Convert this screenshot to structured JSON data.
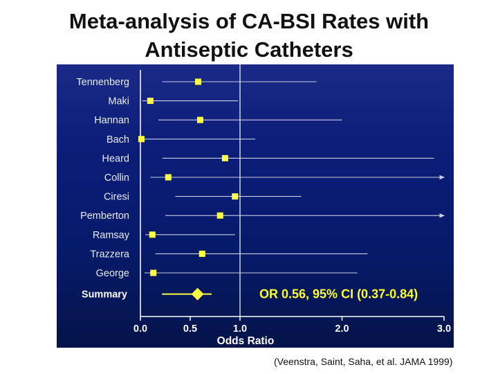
{
  "title_line1": "Meta-analysis of CA-BSI Rates with",
  "title_line2": "Antiseptic Catheters",
  "citation": "(Veenstra, Saint, Saha, et al. JAMA 1999)",
  "colors": {
    "panel_background": "#0b1d78",
    "study_label": "#e8ecf4",
    "marker": "#ffff44",
    "ci_line": "#c8d0e4",
    "axis": "#ffffff",
    "summary_text": "#ffff33"
  },
  "chart_data": {
    "type": "forest",
    "xlabel": "Odds Ratio",
    "xlim": [
      0.0,
      3.0
    ],
    "xticks": [
      "0.0",
      "0.5",
      "1.0",
      "2.0",
      "3.0"
    ],
    "reference_line": 1.0,
    "studies": [
      {
        "name": "Tennenberg",
        "or": 0.58,
        "lower": 0.22,
        "upper": 1.75,
        "arrow": false
      },
      {
        "name": "Maki",
        "or": 0.1,
        "lower": 0.02,
        "upper": 0.98,
        "arrow": false
      },
      {
        "name": "Hannan",
        "or": 0.6,
        "lower": 0.18,
        "upper": 2.0,
        "arrow": false
      },
      {
        "name": "Bach",
        "or": 0.01,
        "lower": 0.0,
        "upper": 1.15,
        "arrow": false
      },
      {
        "name": "Heard",
        "or": 0.85,
        "lower": 0.22,
        "upper": 2.9,
        "arrow": false
      },
      {
        "name": "Collin",
        "or": 0.28,
        "lower": 0.1,
        "upper": 3.0,
        "arrow": true
      },
      {
        "name": "Ciresi",
        "or": 0.95,
        "lower": 0.35,
        "upper": 1.6,
        "arrow": false
      },
      {
        "name": "Pemberton",
        "or": 0.8,
        "lower": 0.25,
        "upper": 3.0,
        "arrow": true
      },
      {
        "name": "Ramsay",
        "or": 0.12,
        "lower": 0.05,
        "upper": 0.95,
        "arrow": false
      },
      {
        "name": "Trazzera",
        "or": 0.62,
        "lower": 0.15,
        "upper": 2.25,
        "arrow": false
      },
      {
        "name": "George",
        "or": 0.13,
        "lower": 0.04,
        "upper": 2.15,
        "arrow": false
      }
    ],
    "summary": {
      "name": "Summary",
      "or": 0.56,
      "lower": 0.37,
      "upper": 0.84
    },
    "annotation": "OR 0.56, 95% CI (0.37-0.84)"
  }
}
